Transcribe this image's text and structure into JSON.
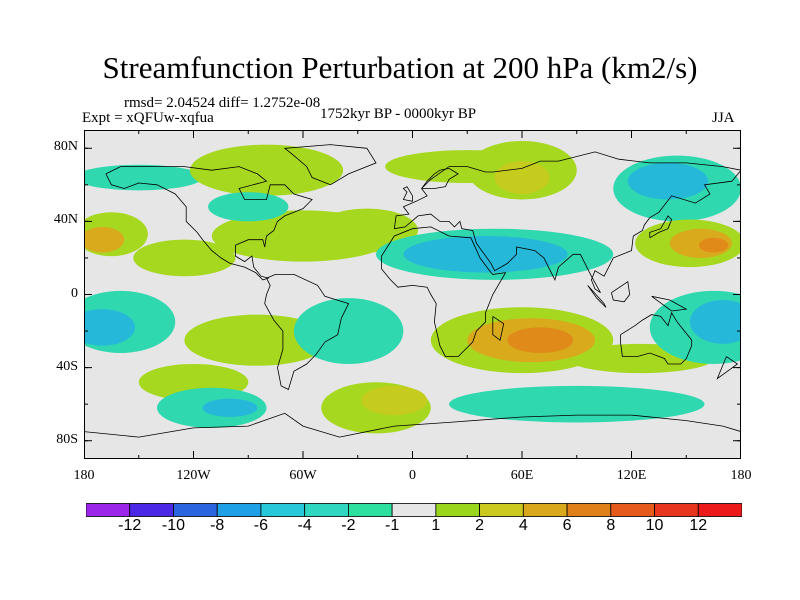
{
  "figure": {
    "title": "Streamfunction Perturbation at 200 hPa (km2/s)",
    "rmsd_text": "rmsd= 2.04524 diff= 1.2752e-08",
    "experiment": "Expt = xQFUw-xqfua",
    "period": "1752kyr BP - 0000kyr BP",
    "season": "JJA"
  },
  "axes": {
    "lat_ticks": [
      {
        "value": 80,
        "label": "80N"
      },
      {
        "value": 40,
        "label": "40N"
      },
      {
        "value": 0,
        "label": "0"
      },
      {
        "value": -40,
        "label": "40S"
      },
      {
        "value": -80,
        "label": "80S"
      }
    ],
    "lon_ticks": [
      {
        "value": -180,
        "label": "180"
      },
      {
        "value": -120,
        "label": "120W"
      },
      {
        "value": -60,
        "label": "60W"
      },
      {
        "value": 0,
        "label": "0"
      },
      {
        "value": 60,
        "label": "60E"
      },
      {
        "value": 120,
        "label": "120E"
      },
      {
        "value": 180,
        "label": "180"
      }
    ],
    "lat_range": [
      -90,
      90
    ],
    "lon_range": [
      -180,
      180
    ]
  },
  "colorbar": {
    "labels": [
      "-12",
      "-10",
      "-8",
      "-6",
      "-4",
      "-2",
      "-1",
      "1",
      "2",
      "4",
      "6",
      "8",
      "10",
      "12"
    ],
    "colors": [
      "#9b25e8",
      "#4a28e6",
      "#2a64df",
      "#1ea0e6",
      "#27c8d9",
      "#2fd6c0",
      "#2ee0a0",
      "#e6e6e6",
      "#9ad61c",
      "#cbc81f",
      "#d9a81c",
      "#e0801a",
      "#e65a1c",
      "#e8361e",
      "#ec1a1a"
    ]
  },
  "field": {
    "neutral_color": "#e6e6e6",
    "blobs": [
      {
        "lon": -165,
        "lat": 33,
        "rx": 20,
        "ry": 12,
        "level": 1
      },
      {
        "lon": -170,
        "lat": 30,
        "rx": 12,
        "ry": 7,
        "level": 2
      },
      {
        "lon": -150,
        "lat": 64,
        "rx": 35,
        "ry": 7,
        "level": -1
      },
      {
        "lon": -80,
        "lat": 68,
        "rx": 42,
        "ry": 14,
        "level": 1
      },
      {
        "lon": -25,
        "lat": 35,
        "rx": 28,
        "ry": 12,
        "level": 0.5
      },
      {
        "lon": -125,
        "lat": 20,
        "rx": 28,
        "ry": 10,
        "level": 0.5
      },
      {
        "lon": -60,
        "lat": 32,
        "rx": 50,
        "ry": 14,
        "level": 0.5
      },
      {
        "lon": -80,
        "lat": 32,
        "rx": 25,
        "ry": 8,
        "level": 0.5
      },
      {
        "lon": -90,
        "lat": 48,
        "rx": 22,
        "ry": 8,
        "level": -1
      },
      {
        "lon": 60,
        "lat": 68,
        "rx": 30,
        "ry": 16,
        "level": 1
      },
      {
        "lon": 60,
        "lat": 64,
        "rx": 15,
        "ry": 9,
        "level": 1.5
      },
      {
        "lon": 30,
        "lat": 70,
        "rx": 45,
        "ry": 9,
        "level": 0.5
      },
      {
        "lon": 45,
        "lat": 22,
        "rx": 65,
        "ry": 14,
        "level": -1
      },
      {
        "lon": 40,
        "lat": 22,
        "rx": 45,
        "ry": 10,
        "level": -2
      },
      {
        "lon": 145,
        "lat": 58,
        "rx": 35,
        "ry": 18,
        "level": -1
      },
      {
        "lon": 140,
        "lat": 62,
        "rx": 22,
        "ry": 10,
        "level": -2
      },
      {
        "lon": 152,
        "lat": 28,
        "rx": 30,
        "ry": 13,
        "level": 1
      },
      {
        "lon": 158,
        "lat": 28,
        "rx": 17,
        "ry": 8,
        "level": 2
      },
      {
        "lon": 165,
        "lat": 27,
        "rx": 8,
        "ry": 4,
        "level": 3
      },
      {
        "lon": -160,
        "lat": -15,
        "rx": 30,
        "ry": 17,
        "level": -1
      },
      {
        "lon": -170,
        "lat": -18,
        "rx": 18,
        "ry": 10,
        "level": -2
      },
      {
        "lon": -85,
        "lat": -25,
        "rx": 40,
        "ry": 14,
        "level": 0.5
      },
      {
        "lon": -120,
        "lat": -48,
        "rx": 30,
        "ry": 10,
        "level": 0.5
      },
      {
        "lon": -110,
        "lat": -62,
        "rx": 30,
        "ry": 11,
        "level": -1
      },
      {
        "lon": -100,
        "lat": -62,
        "rx": 15,
        "ry": 5,
        "level": -2
      },
      {
        "lon": -20,
        "lat": -62,
        "rx": 30,
        "ry": 14,
        "level": 1
      },
      {
        "lon": -10,
        "lat": -58,
        "rx": 18,
        "ry": 8,
        "level": 1.5
      },
      {
        "lon": -35,
        "lat": -20,
        "rx": 30,
        "ry": 18,
        "level": -1
      },
      {
        "lon": 60,
        "lat": -25,
        "rx": 50,
        "ry": 18,
        "level": 1
      },
      {
        "lon": 65,
        "lat": -25,
        "rx": 35,
        "ry": 12,
        "level": 2
      },
      {
        "lon": 70,
        "lat": -25,
        "rx": 18,
        "ry": 7,
        "level": 3
      },
      {
        "lon": 165,
        "lat": -18,
        "rx": 35,
        "ry": 20,
        "level": -1
      },
      {
        "lon": 170,
        "lat": -15,
        "rx": 18,
        "ry": 12,
        "level": -2
      },
      {
        "lon": 125,
        "lat": -35,
        "rx": 40,
        "ry": 8,
        "level": 0.5
      },
      {
        "lon": 90,
        "lat": -60,
        "rx": 70,
        "ry": 10,
        "level": -1
      }
    ]
  },
  "coastlines": [
    [
      [
        -168,
        66
      ],
      [
        -160,
        70
      ],
      [
        -140,
        70
      ],
      [
        -125,
        70
      ],
      [
        -110,
        68
      ],
      [
        -95,
        70
      ],
      [
        -85,
        66
      ],
      [
        -80,
        62
      ],
      [
        -95,
        58
      ],
      [
        -92,
        52
      ],
      [
        -80,
        52
      ],
      [
        -78,
        60
      ],
      [
        -70,
        60
      ],
      [
        -65,
        55
      ],
      [
        -55,
        52
      ],
      [
        -60,
        47
      ],
      [
        -70,
        43
      ],
      [
        -74,
        40
      ],
      [
        -76,
        35
      ],
      [
        -80,
        32
      ],
      [
        -81,
        26
      ],
      [
        -82,
        30
      ],
      [
        -90,
        30
      ],
      [
        -97,
        27
      ],
      [
        -97,
        21
      ],
      [
        -92,
        18
      ],
      [
        -88,
        21
      ],
      [
        -87,
        15
      ],
      [
        -83,
        10
      ],
      [
        -79,
        9
      ],
      [
        -82,
        8
      ],
      [
        -86,
        12
      ],
      [
        -92,
        15
      ],
      [
        -100,
        17
      ],
      [
        -105,
        20
      ],
      [
        -110,
        24
      ],
      [
        -115,
        30
      ],
      [
        -118,
        34
      ],
      [
        -124,
        40
      ],
      [
        -124,
        48
      ],
      [
        -130,
        55
      ],
      [
        -140,
        60
      ],
      [
        -150,
        61
      ],
      [
        -158,
        58
      ],
      [
        -165,
        60
      ],
      [
        -168,
        66
      ]
    ],
    [
      [
        -45,
        60
      ],
      [
        -55,
        64
      ],
      [
        -58,
        70
      ],
      [
        -65,
        76
      ],
      [
        -70,
        80
      ],
      [
        -45,
        82
      ],
      [
        -25,
        80
      ],
      [
        -20,
        72
      ],
      [
        -35,
        66
      ],
      [
        -45,
        60
      ]
    ],
    [
      [
        -80,
        9
      ],
      [
        -75,
        11
      ],
      [
        -65,
        11
      ],
      [
        -52,
        5
      ],
      [
        -48,
        -1
      ],
      [
        -35,
        -5
      ],
      [
        -39,
        -13
      ],
      [
        -41,
        -22
      ],
      [
        -48,
        -26
      ],
      [
        -53,
        -33
      ],
      [
        -58,
        -38
      ],
      [
        -65,
        -42
      ],
      [
        -68,
        -52
      ],
      [
        -72,
        -50
      ],
      [
        -74,
        -40
      ],
      [
        -71,
        -30
      ],
      [
        -71,
        -20
      ],
      [
        -76,
        -14
      ],
      [
        -81,
        -5
      ],
      [
        -80,
        0
      ],
      [
        -78,
        5
      ],
      [
        -80,
        9
      ]
    ],
    [
      [
        -17,
        21
      ],
      [
        -17,
        14
      ],
      [
        -12,
        8
      ],
      [
        -8,
        4
      ],
      [
        0,
        5
      ],
      [
        8,
        4
      ],
      [
        10,
        0
      ],
      [
        13,
        -5
      ],
      [
        12,
        -15
      ],
      [
        15,
        -28
      ],
      [
        18,
        -34
      ],
      [
        25,
        -34
      ],
      [
        33,
        -26
      ],
      [
        35,
        -20
      ],
      [
        40,
        -15
      ],
      [
        40,
        -10
      ],
      [
        44,
        0
      ],
      [
        51,
        12
      ],
      [
        44,
        11
      ],
      [
        43,
        12
      ],
      [
        37,
        20
      ],
      [
        32,
        31
      ],
      [
        20,
        32
      ],
      [
        10,
        37
      ],
      [
        0,
        36
      ],
      [
        -10,
        32
      ],
      [
        -17,
        21
      ]
    ],
    [
      [
        44,
        -12
      ],
      [
        50,
        -16
      ],
      [
        48,
        -25
      ],
      [
        44,
        -22
      ],
      [
        44,
        -12
      ]
    ],
    [
      [
        -10,
        36
      ],
      [
        -9,
        43
      ],
      [
        -2,
        44
      ],
      [
        -5,
        48
      ],
      [
        2,
        51
      ],
      [
        8,
        54
      ],
      [
        5,
        58
      ],
      [
        10,
        63
      ],
      [
        20,
        70
      ],
      [
        30,
        70
      ],
      [
        40,
        67
      ],
      [
        44,
        67
      ],
      [
        60,
        69
      ],
      [
        70,
        73
      ],
      [
        80,
        73
      ],
      [
        100,
        78
      ],
      [
        113,
        74
      ],
      [
        130,
        72
      ],
      [
        150,
        72
      ],
      [
        170,
        70
      ],
      [
        180,
        68
      ],
      [
        175,
        62
      ],
      [
        160,
        60
      ],
      [
        163,
        55
      ],
      [
        155,
        50
      ],
      [
        142,
        54
      ],
      [
        135,
        45
      ],
      [
        130,
        42
      ],
      [
        127,
        38
      ],
      [
        126,
        35
      ],
      [
        121,
        32
      ],
      [
        120,
        24
      ],
      [
        110,
        20
      ],
      [
        108,
        16
      ],
      [
        105,
        10
      ],
      [
        100,
        13
      ],
      [
        98,
        8
      ],
      [
        100,
        3
      ],
      [
        103,
        1
      ],
      [
        98,
        10
      ],
      [
        95,
        16
      ],
      [
        92,
        22
      ],
      [
        88,
        22
      ],
      [
        80,
        15
      ],
      [
        78,
        8
      ],
      [
        72,
        20
      ],
      [
        67,
        24
      ],
      [
        57,
        26
      ],
      [
        57,
        22
      ],
      [
        52,
        17
      ],
      [
        45,
        13
      ],
      [
        43,
        17
      ],
      [
        35,
        28
      ],
      [
        33,
        35
      ],
      [
        27,
        36
      ],
      [
        26,
        40
      ],
      [
        23,
        37
      ],
      [
        20,
        40
      ],
      [
        15,
        40
      ],
      [
        10,
        44
      ],
      [
        3,
        43
      ],
      [
        -4,
        37
      ],
      [
        -10,
        36
      ]
    ],
    [
      [
        0,
        51
      ],
      [
        -5,
        52
      ],
      [
        -3,
        56
      ],
      [
        -5,
        58
      ],
      [
        -3,
        59
      ],
      [
        0,
        54
      ],
      [
        0,
        51
      ]
    ],
    [
      [
        5,
        58
      ],
      [
        12,
        58
      ],
      [
        18,
        59
      ],
      [
        20,
        63
      ],
      [
        25,
        66
      ],
      [
        20,
        69
      ],
      [
        15,
        68
      ],
      [
        12,
        66
      ],
      [
        8,
        62
      ],
      [
        5,
        58
      ]
    ],
    [
      [
        114,
        -22
      ],
      [
        114,
        -26
      ],
      [
        115,
        -34
      ],
      [
        123,
        -34
      ],
      [
        130,
        -32
      ],
      [
        138,
        -35
      ],
      [
        140,
        -38
      ],
      [
        147,
        -38
      ],
      [
        150,
        -35
      ],
      [
        153,
        -28
      ],
      [
        153,
        -25
      ],
      [
        145,
        -15
      ],
      [
        142,
        -10
      ],
      [
        140,
        -17
      ],
      [
        136,
        -12
      ],
      [
        131,
        -11
      ],
      [
        126,
        -14
      ],
      [
        122,
        -17
      ],
      [
        114,
        -22
      ]
    ],
    [
      [
        96,
        5
      ],
      [
        105,
        -5
      ],
      [
        106,
        -7
      ],
      [
        101,
        -2
      ],
      [
        96,
        5
      ]
    ],
    [
      [
        109,
        1
      ],
      [
        118,
        7
      ],
      [
        119,
        0
      ],
      [
        116,
        -4
      ],
      [
        110,
        -3
      ],
      [
        109,
        1
      ]
    ],
    [
      [
        131,
        -1
      ],
      [
        141,
        -3
      ],
      [
        150,
        -8
      ],
      [
        142,
        -9
      ],
      [
        131,
        -1
      ]
    ],
    [
      [
        130,
        31
      ],
      [
        135,
        34
      ],
      [
        140,
        36
      ],
      [
        142,
        41
      ],
      [
        140,
        43
      ],
      [
        136,
        36
      ],
      [
        130,
        34
      ],
      [
        130,
        31
      ]
    ],
    [
      [
        172,
        -34
      ],
      [
        178,
        -38
      ],
      [
        174,
        -41
      ],
      [
        167,
        -46
      ],
      [
        172,
        -34
      ]
    ],
    [
      [
        -180,
        -75
      ],
      [
        -150,
        -78
      ],
      [
        -120,
        -73
      ],
      [
        -90,
        -72
      ],
      [
        -70,
        -65
      ],
      [
        -60,
        -72
      ],
      [
        -40,
        -78
      ],
      [
        -10,
        -72
      ],
      [
        20,
        -70
      ],
      [
        60,
        -67
      ],
      [
        90,
        -66
      ],
      [
        120,
        -66
      ],
      [
        150,
        -69
      ],
      [
        170,
        -72
      ],
      [
        180,
        -75
      ]
    ]
  ]
}
